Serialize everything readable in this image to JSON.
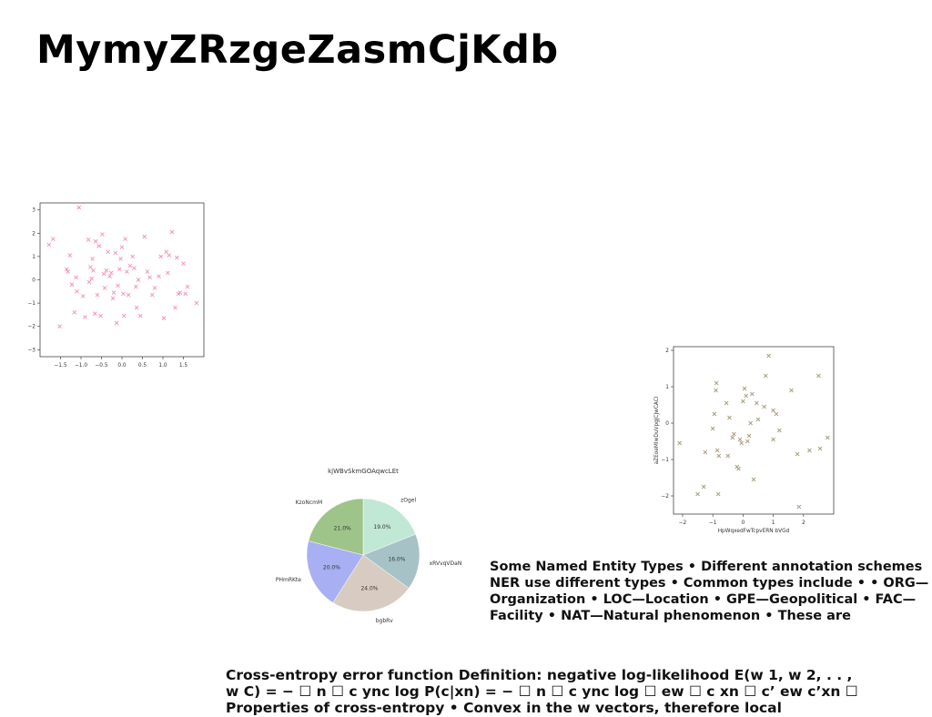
{
  "page": {
    "title": "MymyZRzgeZasmCjKdb"
  },
  "texts": {
    "ner_block": "Some Named Entity Types • Different annotation schemes NER use different types • Common types include • • ORG—Organization • LOC—Location • GPE—Geopolitical • FAC—Facility • NAT—Natural phenomenon • These are",
    "cross_entropy_block": "Cross-entropy error function Definition: negative log-likelihood E(w 1, w 2, . . , w C) = − ☐ n ☐ c ync log P(c|xn) = − ☐ n ☐ c ync log ☐ ew ☐ c xn ☐ c’ ew c’xn ☐ Properties of cross-entropy • Convex in the w vectors, therefore local"
  },
  "chart_data": [
    {
      "type": "scatter",
      "title": "",
      "xlabel": "",
      "ylabel": "",
      "xlim": [
        -2.0,
        2.0
      ],
      "ylim": [
        -3.3,
        3.3
      ],
      "xticks": [
        -1.5,
        -1.0,
        -0.5,
        0.0,
        0.5,
        1.0,
        1.5
      ],
      "xtick_labels": [
        "−1.5",
        "−1.0",
        "−0.5",
        "0.0",
        "0.5",
        "1.0",
        "1.5"
      ],
      "yticks": [
        -3,
        -2,
        -1,
        0,
        1,
        2,
        3
      ],
      "ytick_labels": [
        "−3",
        "−2",
        "−1",
        "0",
        "1",
        "2",
        "3"
      ],
      "marker": "x",
      "color": "#f48fb1",
      "grid": false,
      "x": [
        -1.78,
        -1.68,
        -1.52,
        -1.35,
        -1.32,
        -1.27,
        -1.22,
        -1.16,
        -1.12,
        -1.1,
        -1.05,
        -0.95,
        -0.9,
        -0.82,
        -0.8,
        -0.77,
        -0.74,
        -0.72,
        -0.7,
        -0.66,
        -0.64,
        -0.6,
        -0.56,
        -0.52,
        -0.48,
        -0.44,
        -0.42,
        -0.38,
        -0.34,
        -0.3,
        -0.26,
        -0.22,
        -0.2,
        -0.16,
        -0.13,
        -0.1,
        -0.06,
        -0.03,
        0.0,
        0.03,
        0.05,
        0.08,
        0.12,
        0.16,
        0.2,
        0.26,
        0.3,
        0.34,
        0.36,
        0.4,
        0.45,
        0.55,
        0.62,
        0.68,
        0.74,
        0.8,
        0.9,
        0.95,
        1.02,
        1.08,
        1.12,
        1.15,
        1.22,
        1.3,
        1.34,
        1.38,
        1.42,
        1.5,
        1.55,
        1.6,
        1.82
      ],
      "y": [
        1.5,
        1.75,
        -2.0,
        0.45,
        0.35,
        1.05,
        -0.2,
        -1.4,
        0.1,
        -0.5,
        3.1,
        -0.7,
        -1.6,
        1.72,
        -0.1,
        0.55,
        0.05,
        0.9,
        0.4,
        -1.45,
        1.65,
        -0.65,
        1.45,
        -1.55,
        1.95,
        0.25,
        -0.35,
        0.4,
        1.2,
        0.15,
        0.3,
        -0.8,
        -0.55,
        1.15,
        -1.85,
        -0.25,
        0.45,
        0.9,
        1.4,
        -0.6,
        -1.55,
        1.75,
        0.35,
        -0.65,
        0.6,
        1.0,
        0.5,
        -0.3,
        -1.2,
        0.0,
        -1.55,
        1.85,
        0.35,
        0.1,
        -0.65,
        -0.35,
        0.15,
        1.0,
        -1.65,
        1.2,
        0.3,
        1.05,
        2.05,
        -1.2,
        0.95,
        -0.6,
        -0.55,
        0.7,
        -0.6,
        -0.3,
        -1.0
      ]
    },
    {
      "type": "pie",
      "title": "kjWBvSkmGOAqwcLEt",
      "labels": [
        "zOgel",
        "xRVvqVDaN",
        "bgbRv",
        "PHmRKte",
        "KzoNcmM"
      ],
      "values": [
        19.0,
        16.0,
        24.0,
        20.0,
        21.0
      ],
      "value_labels": [
        "19.0%",
        "16.0%",
        "24.0%",
        "20.0%",
        "21.0%"
      ],
      "colors": [
        "#c0e8d4",
        "#a6c2c7",
        "#d8ccc2",
        "#a8aff2",
        "#9ec48a"
      ],
      "start_angle_deg": 90,
      "direction": "clockwise",
      "legend": "none"
    },
    {
      "type": "scatter",
      "title": "",
      "xlabel": "HpWqxedFwTcpvERN bVGd",
      "ylabel": "aZEoeMIwDuVpgjCjwCACl",
      "xlim": [
        -2.3,
        3.0
      ],
      "ylim": [
        -2.5,
        2.1
      ],
      "xticks": [
        -2,
        -1,
        0,
        1,
        2
      ],
      "xtick_labels": [
        "−2",
        "−1",
        "0",
        "1",
        "2"
      ],
      "yticks": [
        -2,
        -1,
        0,
        1,
        2
      ],
      "ytick_labels": [
        "−2",
        "−1",
        "0",
        "1",
        "2"
      ],
      "marker": "x",
      "color": "#a89c7a",
      "grid": false,
      "x": [
        -2.1,
        -1.5,
        -1.3,
        -1.25,
        -1.0,
        -0.95,
        -0.9,
        -0.88,
        -0.85,
        -0.82,
        -0.8,
        -0.55,
        -0.5,
        -0.45,
        -0.35,
        -0.3,
        -0.2,
        -0.15,
        -0.1,
        -0.05,
        0.0,
        0.05,
        0.1,
        0.15,
        0.2,
        0.25,
        0.3,
        0.35,
        0.45,
        0.5,
        0.7,
        0.75,
        0.85,
        1.0,
        1.0,
        1.1,
        1.2,
        1.6,
        1.8,
        1.85,
        2.2,
        2.5,
        2.55,
        2.8
      ],
      "y": [
        -0.55,
        -1.95,
        -1.75,
        -0.8,
        -0.15,
        0.25,
        0.9,
        1.1,
        -0.75,
        -1.95,
        -0.9,
        0.55,
        -0.9,
        0.15,
        -0.4,
        -0.3,
        -1.2,
        -1.25,
        -0.45,
        -0.55,
        0.6,
        0.95,
        0.75,
        -0.5,
        -0.35,
        0.0,
        0.8,
        -1.55,
        0.55,
        0.1,
        0.45,
        1.3,
        1.85,
        0.35,
        -0.45,
        0.25,
        -0.2,
        0.9,
        -0.85,
        -2.3,
        -0.75,
        1.3,
        -0.7,
        -0.4
      ]
    }
  ]
}
